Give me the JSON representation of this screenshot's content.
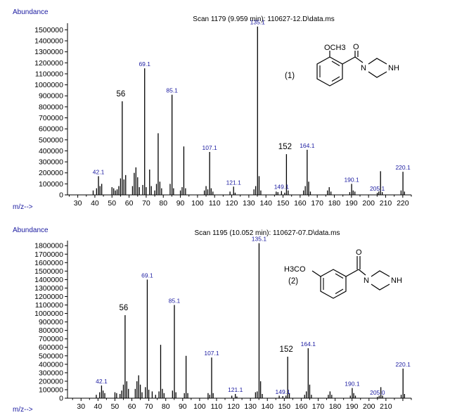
{
  "chart_data": [
    {
      "type": "bar",
      "title": "Scan 1179 (9.959 min): 110627-12.D\\data.ms",
      "ylabel": "Abundance",
      "xlabel": "m/z-->",
      "compound_label": "(1)",
      "structure_labels": {
        "methoxy": "OCH3",
        "nh": "NH",
        "o": "O",
        "n": "N"
      },
      "ylim": [
        0,
        1560000
      ],
      "xlim": [
        24,
        225
      ],
      "y_ticks": [
        0,
        100000,
        200000,
        300000,
        400000,
        500000,
        600000,
        700000,
        800000,
        900000,
        1000000,
        1100000,
        1200000,
        1300000,
        1400000,
        1500000
      ],
      "y_tick_labels": [
        "0",
        "100000",
        "200000",
        "300000",
        "400000",
        "500000",
        "600000",
        "700000",
        "800000",
        "900000",
        "1000000",
        "1100000",
        "1200000",
        "1300000",
        "1400000",
        "1500000"
      ],
      "x_ticks": [
        30,
        40,
        50,
        60,
        70,
        80,
        90,
        100,
        110,
        120,
        130,
        140,
        150,
        160,
        170,
        180,
        190,
        200,
        210,
        220
      ],
      "x_tick_labels": [
        "30",
        "40",
        "50",
        "60",
        "70",
        "80",
        "90",
        "100",
        "110",
        "120",
        "130",
        "140",
        "150",
        "160",
        "170",
        "180",
        "190",
        "200",
        "210",
        "220"
      ],
      "peaks": [
        [
          39,
          40000
        ],
        [
          41,
          60000
        ],
        [
          42.1,
          170000
        ],
        [
          43,
          80000
        ],
        [
          44,
          100000
        ],
        [
          50,
          70000
        ],
        [
          51,
          60000
        ],
        [
          52,
          40000
        ],
        [
          53,
          50000
        ],
        [
          54,
          80000
        ],
        [
          55,
          150000
        ],
        [
          56,
          850000
        ],
        [
          57,
          140000
        ],
        [
          58,
          180000
        ],
        [
          62,
          80000
        ],
        [
          63,
          200000
        ],
        [
          64,
          250000
        ],
        [
          65,
          160000
        ],
        [
          66,
          70000
        ],
        [
          68,
          90000
        ],
        [
          69.1,
          1150000
        ],
        [
          70,
          70000
        ],
        [
          72,
          230000
        ],
        [
          73,
          80000
        ],
        [
          75,
          40000
        ],
        [
          76,
          100000
        ],
        [
          77,
          560000
        ],
        [
          78,
          120000
        ],
        [
          79,
          60000
        ],
        [
          84,
          100000
        ],
        [
          85.1,
          910000
        ],
        [
          86,
          60000
        ],
        [
          90,
          40000
        ],
        [
          91,
          70000
        ],
        [
          92,
          440000
        ],
        [
          93,
          60000
        ],
        [
          104,
          40000
        ],
        [
          105,
          80000
        ],
        [
          106,
          50000
        ],
        [
          107.1,
          390000
        ],
        [
          108,
          60000
        ],
        [
          109,
          30000
        ],
        [
          119,
          30000
        ],
        [
          121.1,
          75000
        ],
        [
          122,
          20000
        ],
        [
          133,
          50000
        ],
        [
          134,
          80000
        ],
        [
          135.1,
          1530000
        ],
        [
          136,
          170000
        ],
        [
          137,
          40000
        ],
        [
          146,
          30000
        ],
        [
          147,
          25000
        ],
        [
          149.1,
          35000
        ],
        [
          151,
          20000
        ],
        [
          152,
          370000
        ],
        [
          153,
          40000
        ],
        [
          162,
          40000
        ],
        [
          163,
          80000
        ],
        [
          164.1,
          410000
        ],
        [
          165,
          120000
        ],
        [
          166,
          30000
        ],
        [
          176,
          40000
        ],
        [
          177,
          70000
        ],
        [
          178,
          30000
        ],
        [
          189,
          25000
        ],
        [
          190.1,
          100000
        ],
        [
          191,
          40000
        ],
        [
          192,
          30000
        ],
        [
          205.1,
          18000
        ],
        [
          206,
          30000
        ],
        [
          207,
          215000
        ],
        [
          208,
          25000
        ],
        [
          219,
          40000
        ],
        [
          220.1,
          210000
        ],
        [
          221,
          30000
        ]
      ],
      "peak_labels": [
        {
          "mz": 42.1,
          "text": "42.1",
          "style": "blue"
        },
        {
          "mz": 56,
          "text": "56",
          "style": "big"
        },
        {
          "mz": 69.1,
          "text": "69.1",
          "style": "blue"
        },
        {
          "mz": 85.1,
          "text": "85.1",
          "style": "blue"
        },
        {
          "mz": 107.1,
          "text": "107.1",
          "style": "blue"
        },
        {
          "mz": 121.1,
          "text": "121.1",
          "style": "blue"
        },
        {
          "mz": 135.1,
          "text": "135.1",
          "style": "blue"
        },
        {
          "mz": 149.1,
          "text": "149.1",
          "style": "blue"
        },
        {
          "mz": 152,
          "text": "152",
          "style": "big"
        },
        {
          "mz": 164.1,
          "text": "164.1",
          "style": "blue"
        },
        {
          "mz": 190.1,
          "text": "190.1",
          "style": "blue"
        },
        {
          "mz": 205.1,
          "text": "205.1",
          "style": "blue"
        },
        {
          "mz": 220.1,
          "text": "220.1",
          "style": "blue"
        }
      ]
    },
    {
      "type": "bar",
      "title": "Scan 1195 (10.052 min): 110627-07.D\\data.ms",
      "ylabel": "Abundance",
      "xlabel": "m/z-->",
      "compound_label": "(2)",
      "structure_labels": {
        "methoxy": "H3CO",
        "nh": "NH",
        "o": "O",
        "n": "N"
      },
      "ylim": [
        0,
        1860000
      ],
      "xlim": [
        22,
        225
      ],
      "y_ticks": [
        0,
        100000,
        200000,
        300000,
        400000,
        500000,
        600000,
        700000,
        800000,
        900000,
        1000000,
        1100000,
        1200000,
        1300000,
        1400000,
        1500000,
        1600000,
        1700000,
        1800000
      ],
      "y_tick_labels": [
        "0",
        "100000",
        "200000",
        "300000",
        "400000",
        "500000",
        "600000",
        "700000",
        "800000",
        "900000",
        "1000000",
        "1100000",
        "1200000",
        "1300000",
        "1400000",
        "1500000",
        "1600000",
        "1700000",
        "1800000"
      ],
      "x_ticks": [
        30,
        40,
        50,
        60,
        70,
        80,
        90,
        100,
        110,
        120,
        130,
        140,
        150,
        160,
        170,
        180,
        190,
        200,
        210
      ],
      "x_tick_labels": [
        "30",
        "40",
        "50",
        "60",
        "70",
        "80",
        "90",
        "100",
        "110",
        "120",
        "130",
        "140",
        "150",
        "160",
        "170",
        "180",
        "190",
        "200",
        "210"
      ],
      "peaks": [
        [
          39,
          40000
        ],
        [
          41,
          70000
        ],
        [
          42.1,
          150000
        ],
        [
          43,
          90000
        ],
        [
          44,
          60000
        ],
        [
          50,
          70000
        ],
        [
          51,
          60000
        ],
        [
          53,
          50000
        ],
        [
          54,
          90000
        ],
        [
          55,
          160000
        ],
        [
          56,
          980000
        ],
        [
          57,
          200000
        ],
        [
          58,
          110000
        ],
        [
          62,
          110000
        ],
        [
          63,
          200000
        ],
        [
          64,
          270000
        ],
        [
          65,
          160000
        ],
        [
          66,
          70000
        ],
        [
          68,
          130000
        ],
        [
          69.1,
          1400000
        ],
        [
          70,
          100000
        ],
        [
          72,
          80000
        ],
        [
          74,
          40000
        ],
        [
          76,
          80000
        ],
        [
          77,
          630000
        ],
        [
          78,
          110000
        ],
        [
          79,
          60000
        ],
        [
          84,
          90000
        ],
        [
          85.1,
          1100000
        ],
        [
          86,
          70000
        ],
        [
          91,
          60000
        ],
        [
          92,
          500000
        ],
        [
          93,
          60000
        ],
        [
          105,
          60000
        ],
        [
          106,
          40000
        ],
        [
          107.1,
          480000
        ],
        [
          108,
          60000
        ],
        [
          119,
          30000
        ],
        [
          121.1,
          50000
        ],
        [
          122,
          20000
        ],
        [
          133,
          70000
        ],
        [
          134,
          80000
        ],
        [
          135.1,
          1830000
        ],
        [
          136,
          200000
        ],
        [
          137,
          50000
        ],
        [
          147,
          30000
        ],
        [
          149.1,
          25000
        ],
        [
          151,
          30000
        ],
        [
          152,
          490000
        ],
        [
          153,
          60000
        ],
        [
          162,
          40000
        ],
        [
          163,
          80000
        ],
        [
          164.1,
          590000
        ],
        [
          165,
          160000
        ],
        [
          166,
          40000
        ],
        [
          176,
          40000
        ],
        [
          177,
          80000
        ],
        [
          178,
          40000
        ],
        [
          189,
          30000
        ],
        [
          190.1,
          120000
        ],
        [
          191,
          60000
        ],
        [
          192,
          30000
        ],
        [
          205.0,
          15000
        ],
        [
          206,
          30000
        ],
        [
          207,
          130000
        ],
        [
          208,
          30000
        ],
        [
          219,
          40000
        ],
        [
          220.1,
          350000
        ],
        [
          221,
          50000
        ]
      ],
      "peak_labels": [
        {
          "mz": 42.1,
          "text": "42.1",
          "style": "blue"
        },
        {
          "mz": 56,
          "text": "56",
          "style": "big"
        },
        {
          "mz": 69.1,
          "text": "69.1",
          "style": "blue"
        },
        {
          "mz": 85.1,
          "text": "85.1",
          "style": "blue"
        },
        {
          "mz": 107.1,
          "text": "107.1",
          "style": "blue"
        },
        {
          "mz": 121.1,
          "text": "121.1",
          "style": "blue"
        },
        {
          "mz": 135.1,
          "text": "135.1",
          "style": "blue"
        },
        {
          "mz": 149.1,
          "text": "149.1",
          "style": "blue"
        },
        {
          "mz": 152,
          "text": "152",
          "style": "big"
        },
        {
          "mz": 164.1,
          "text": "164.1",
          "style": "blue"
        },
        {
          "mz": 190.1,
          "text": "190.1",
          "style": "blue"
        },
        {
          "mz": 205.0,
          "text": "205.0",
          "style": "blue"
        },
        {
          "mz": 220.1,
          "text": "220.1",
          "style": "blue"
        }
      ]
    }
  ]
}
